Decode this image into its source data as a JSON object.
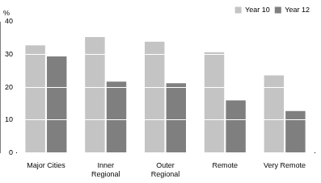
{
  "chart_data": {
    "type": "bar",
    "ylabel": "%",
    "categories": [
      "Major Cities",
      "Inner Regional",
      "Outer Regional",
      "Remote",
      "Very Remote"
    ],
    "series": [
      {
        "name": "Year 10",
        "color": "#c4c4c4",
        "values": [
          32.8,
          35.3,
          33.9,
          30.7,
          23.6
        ]
      },
      {
        "name": "Year 12",
        "color": "#7f7f7f",
        "values": [
          29.4,
          21.7,
          21.2,
          16.0,
          12.7
        ]
      }
    ],
    "ylim": [
      0,
      40
    ],
    "yticks": [
      0,
      10,
      20,
      30,
      40
    ],
    "grid": true,
    "legend": "upper right"
  }
}
